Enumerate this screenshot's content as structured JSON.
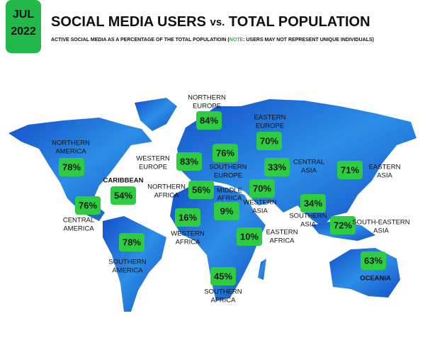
{
  "header": {
    "badge": [
      "JUL",
      "2022"
    ],
    "title": {
      "part1": "SOCIAL MEDIA USERS ",
      "part2": "vs.",
      "part3": " TOTAL POPULATION"
    },
    "subtitle": {
      "part1": "ACTIVE SOCIAL MEDIA AS A PERCENTAGE OF THE TOTAL POPULATIOIN (",
      "note": "NOTE",
      "part2": ": USERS MAY NOT REPRESENT UNIQUE INDIVIDUALS)"
    }
  },
  "regions": [
    {
      "name": [
        "NORTHERN",
        "EUROPE"
      ],
      "value": "84%"
    },
    {
      "name": [
        "EASTERN",
        "EUROPE"
      ],
      "value": "70%"
    },
    {
      "name": [
        "NORTHERN",
        "AMERICA"
      ],
      "value": "78%"
    },
    {
      "name": [
        "WESTERN",
        "EUROPE"
      ],
      "value": "83%"
    },
    {
      "name": [
        "SOUTHERN",
        "EUROPE"
      ],
      "value": "76%"
    },
    {
      "name": [
        "CENTRAL",
        "ASIA"
      ],
      "value": "33%"
    },
    {
      "name": [
        "EASTERN",
        "ASIA"
      ],
      "value": "71%"
    },
    {
      "name": [
        "CARIBBEAN"
      ],
      "value": "54%"
    },
    {
      "name": [
        "NORTHERN",
        "AFRICA"
      ],
      "value": "56%"
    },
    {
      "name": [
        "MIDDLE",
        "AFRICA"
      ],
      "value": "9%"
    },
    {
      "name": [
        "WESTERN",
        "ASIA"
      ],
      "value": "70%"
    },
    {
      "name": [
        "CENTRAL",
        "AMERICA"
      ],
      "value": "76%"
    },
    {
      "name": [
        "SOUTHERN",
        "ASIA"
      ],
      "value": "34%"
    },
    {
      "name": [
        "WESTERN",
        "AFRICA"
      ],
      "value": "16%"
    },
    {
      "name": [
        "SOUTH-EASTERN",
        "ASIA"
      ],
      "value": "72%"
    },
    {
      "name": [
        "EASTERN",
        "AFRICA"
      ],
      "value": "10%"
    },
    {
      "name": [
        "SOUTHERN",
        "AMERICA"
      ],
      "value": "78%"
    },
    {
      "name": [
        "OCEANIA"
      ],
      "value": "63%"
    },
    {
      "name": [
        "SOUTHERN",
        "AFRICA"
      ],
      "value": "45%"
    }
  ]
}
